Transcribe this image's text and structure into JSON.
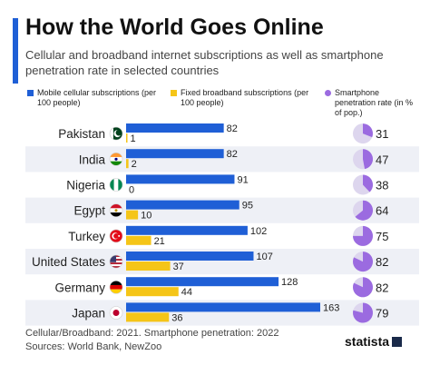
{
  "header": {
    "title": "How the World Goes Online",
    "subtitle": "Cellular and broadband internet subscriptions as well as smartphone penetration rate in selected countries"
  },
  "legend": {
    "mobile": "Mobile cellular subscriptions (per 100 people)",
    "fixed": "Fixed broadband subscriptions (per 100 people)",
    "smartphone": "Smartphone penetration rate (in % of pop.)"
  },
  "colors": {
    "mobile": "#1f5fd6",
    "fixed": "#f5c518",
    "pie_fill": "#9b6be0",
    "pie_bg": "#ddd6ee",
    "row_band": "#eef0f6"
  },
  "chart_data": {
    "type": "bar",
    "categories": [
      "Pakistan",
      "India",
      "Nigeria",
      "Egypt",
      "Turkey",
      "United States",
      "Germany",
      "Japan"
    ],
    "series": [
      {
        "name": "Mobile cellular subscriptions (per 100 people)",
        "values": [
          82,
          82,
          91,
          95,
          102,
          107,
          128,
          163
        ]
      },
      {
        "name": "Fixed broadband subscriptions (per 100 people)",
        "values": [
          1,
          2,
          0,
          10,
          21,
          37,
          44,
          36
        ]
      },
      {
        "name": "Smartphone penetration rate (in % of pop.)",
        "values": [
          31,
          47,
          38,
          64,
          75,
          82,
          82,
          79
        ]
      }
    ],
    "flags": [
      "pakistan-flag-icon",
      "india-flag-icon",
      "nigeria-flag-icon",
      "egypt-flag-icon",
      "turkey-flag-icon",
      "usa-flag-icon",
      "germany-flag-icon",
      "japan-flag-icon"
    ],
    "grid": false,
    "legend_position": "top"
  },
  "footer": {
    "note": "Cellular/Broadband: 2021. Smartphone penetration: 2022",
    "sources": "Sources: World Bank, NewZoo"
  },
  "brand": {
    "logo": "statista"
  }
}
